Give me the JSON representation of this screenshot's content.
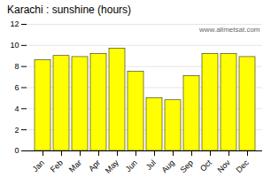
{
  "chart_data": {
    "type": "bar",
    "title": "Karachi : sunshine (hours)",
    "categories": [
      "Jan",
      "Feb",
      "Mar",
      "Apr",
      "May",
      "Jun",
      "Jul",
      "Aug",
      "Sep",
      "Oct",
      "Nov",
      "Dec"
    ],
    "values": [
      8.6,
      9.0,
      8.9,
      9.2,
      9.7,
      7.5,
      5.0,
      4.8,
      7.1,
      9.2,
      9.2,
      8.9
    ],
    "color": "#ffff00",
    "ylim": [
      0,
      12
    ],
    "yticks": [
      0,
      2,
      4,
      6,
      8,
      10,
      12
    ],
    "grid": true,
    "annotations": [
      "www.allmetsat.com"
    ]
  }
}
